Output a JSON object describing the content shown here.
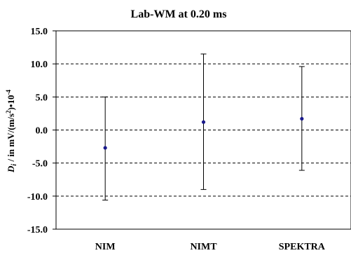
{
  "chart_data": {
    "type": "scatter",
    "title": "Lab-WM at 0.20 ms",
    "ylabel": {
      "symbol": "D",
      "subscript": "i",
      "text": " / in mV/(m/s",
      "power": "2",
      "text2": ")•10",
      "exponent": "-4"
    },
    "xlabel": "",
    "categories": [
      "NIM",
      "NIMT",
      "SPEKTRA"
    ],
    "series": [
      {
        "values": [
          -2.7,
          1.2,
          1.7
        ],
        "error_low": [
          -10.6,
          -9.0,
          -6.1
        ],
        "error_high": [
          5.0,
          11.5,
          9.6
        ]
      }
    ],
    "ylim": [
      -15,
      15
    ],
    "yticks": [
      15,
      10,
      5,
      0,
      -5,
      -10,
      -15
    ],
    "ytick_labels": [
      "15.0",
      "10.0",
      "5.0",
      "0.0",
      "-5.0",
      "-10.0",
      "-15.0"
    ],
    "grid": "dashed horizontal",
    "marker_color": "#1a1a8c",
    "errorbar_color": "#000000"
  }
}
